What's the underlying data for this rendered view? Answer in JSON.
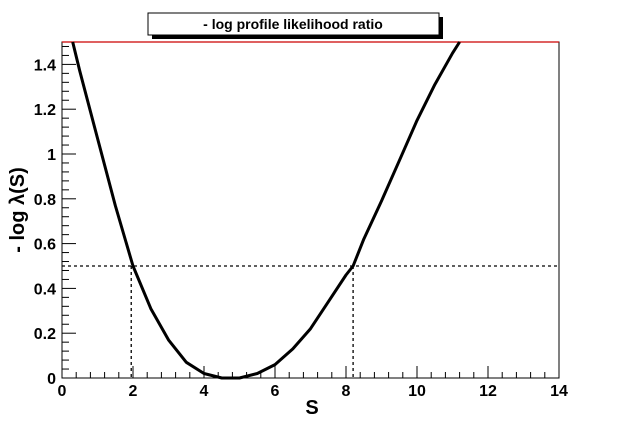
{
  "chart_data": {
    "type": "line",
    "title": "- log profile likelihood ratio",
    "xlabel": "S",
    "ylabel": "- log λ(S)",
    "xlim": [
      0,
      14
    ],
    "ylim": [
      0,
      1.5
    ],
    "x_ticks": [
      "0",
      "2",
      "4",
      "6",
      "8",
      "10",
      "12",
      "14"
    ],
    "y_ticks": [
      "0",
      "0.2",
      "0.4",
      "0.6",
      "0.8",
      "1",
      "1.2",
      "1.4"
    ],
    "grid": false,
    "series": [
      {
        "x": [
          0.3,
          0.5,
          1.0,
          1.5,
          2.0,
          2.5,
          3.0,
          3.5,
          4.0,
          4.5,
          4.7,
          5.0,
          5.5,
          6.0,
          6.5,
          7.0,
          7.5,
          8.0,
          8.2,
          8.5,
          9.0,
          9.5,
          10.0,
          10.5,
          11.0,
          11.2
        ],
        "y": [
          1.5,
          1.37,
          1.07,
          0.77,
          0.5,
          0.31,
          0.17,
          0.07,
          0.02,
          0.0,
          0.0,
          0.0,
          0.02,
          0.06,
          0.13,
          0.22,
          0.34,
          0.46,
          0.5,
          0.62,
          0.79,
          0.97,
          1.15,
          1.31,
          1.45,
          1.5
        ]
      }
    ],
    "reference_lines": {
      "horizontal_y": 0.5,
      "vertical_x": [
        1.95,
        8.2
      ],
      "upper_y": 1.5
    },
    "colors": {
      "curve": "#000000",
      "upper_line": "#cc0000",
      "axis": "#000000"
    }
  }
}
